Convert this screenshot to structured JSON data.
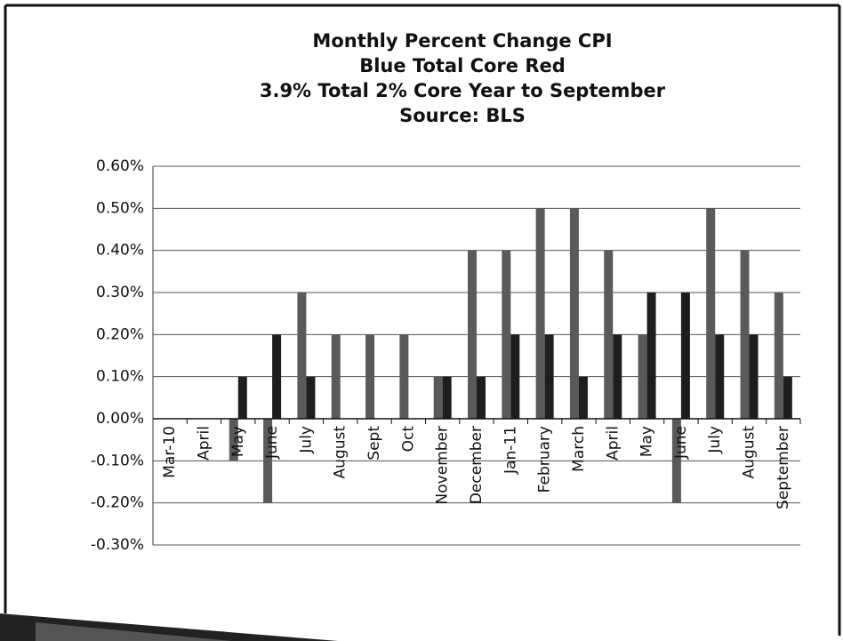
{
  "chart_data": {
    "type": "bar",
    "title": [
      "Monthly Percent Change CPI",
      "Blue Total  Core Red",
      "3.9% Total 2% Core Year to September",
      "Source: BLS"
    ],
    "categories": [
      "Mar-10",
      "April",
      "May",
      "June",
      "July",
      "August",
      "Sept",
      "Oct",
      "November",
      "December",
      "Jan-11",
      "February",
      "March",
      "April",
      "May",
      "June",
      "July",
      "August",
      "September"
    ],
    "series": [
      {
        "color": "#5a5a5a",
        "values": [
          0,
          0,
          -0.1,
          -0.2,
          0.3,
          0.2,
          0.2,
          0.2,
          0.1,
          0.4,
          0.4,
          0.5,
          0.5,
          0.4,
          0.2,
          -0.2,
          0.5,
          0.4,
          0.3
        ]
      },
      {
        "color": "#1e1e1e",
        "values": [
          0,
          0,
          0.1,
          0.2,
          0.1,
          0,
          0,
          0,
          0.1,
          0.1,
          0.2,
          0.2,
          0.1,
          0.2,
          0.3,
          0.3,
          0.2,
          0.2,
          0.1
        ]
      }
    ],
    "ylim": [
      -0.3,
      0.6
    ],
    "yticks": [
      {
        "value": -0.3,
        "label": "-0.30%"
      },
      {
        "value": -0.2,
        "label": "-0.20%"
      },
      {
        "value": -0.1,
        "label": "-0.10%"
      },
      {
        "value": 0,
        "label": "0.00%"
      },
      {
        "value": 0.1,
        "label": "0.10%"
      },
      {
        "value": 0.2,
        "label": "0.20%"
      },
      {
        "value": 0.3,
        "label": "0.30%"
      },
      {
        "value": 0.4,
        "label": "0.40%"
      },
      {
        "value": 0.5,
        "label": "0.50%"
      },
      {
        "value": 0.6,
        "label": "0.60%"
      }
    ],
    "grid": true
  }
}
